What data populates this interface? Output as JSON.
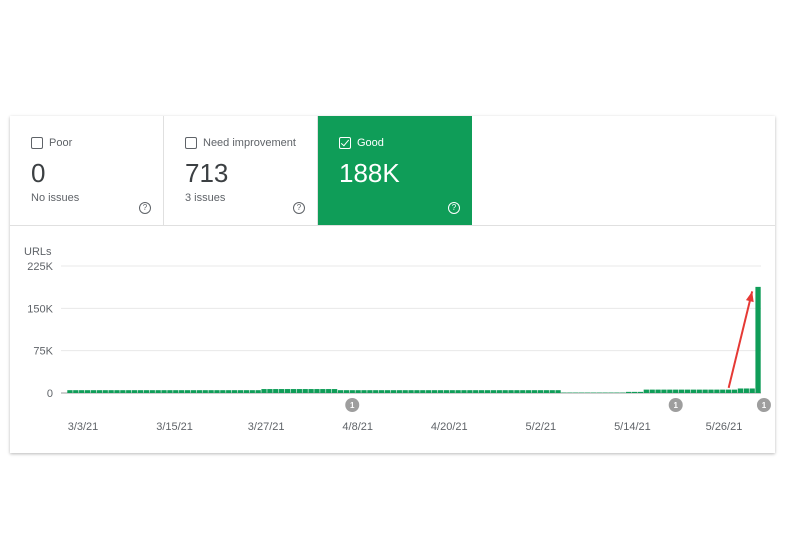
{
  "tiles": {
    "poor": {
      "label": "Poor",
      "value": "0",
      "sub": "No issues",
      "checked": false
    },
    "need_improvement": {
      "label": "Need improvement",
      "value": "713",
      "sub": "3 issues",
      "checked": false
    },
    "good": {
      "label": "Good",
      "value": "188K",
      "sub": "",
      "checked": true
    },
    "help_glyph": "?"
  },
  "colors": {
    "good": "#0f9d58",
    "arrow": "#e53935",
    "marker": "#9e9e9e"
  },
  "chart_data": {
    "type": "bar",
    "ylabel": "URLs",
    "ylim": [
      0,
      225000
    ],
    "yticks": [
      "225K",
      "150K",
      "75K",
      "0"
    ],
    "ytick_values": [
      225000,
      150000,
      75000,
      0
    ],
    "xticks": [
      "3/3/21",
      "3/15/21",
      "3/27/21",
      "4/8/21",
      "4/20/21",
      "5/2/21",
      "5/14/21",
      "5/26/21"
    ],
    "grid": true,
    "series": [
      {
        "color": "#0f9d58",
        "values": [
          5000,
          5000,
          5000,
          5000,
          5000,
          5000,
          5000,
          5000,
          5000,
          5000,
          5000,
          5000,
          5000,
          5000,
          5000,
          5000,
          5000,
          5000,
          5000,
          5000,
          5000,
          5000,
          5000,
          5000,
          5000,
          5000,
          5000,
          5000,
          5000,
          5000,
          5000,
          5000,
          5000,
          7000,
          7000,
          7000,
          7000,
          7000,
          7000,
          7000,
          7000,
          7000,
          7000,
          7000,
          7000,
          7000,
          5000,
          5000,
          5000,
          5000,
          5000,
          5000,
          5000,
          5000,
          5000,
          5000,
          5000,
          5000,
          5000,
          5000,
          5000,
          5000,
          5000,
          5000,
          5000,
          5000,
          5000,
          5000,
          5000,
          5000,
          5000,
          5000,
          5000,
          5000,
          5000,
          5000,
          5000,
          5000,
          5000,
          5000,
          5000,
          5000,
          5000,
          5000,
          800,
          800,
          800,
          800,
          800,
          800,
          800,
          800,
          800,
          800,
          800,
          2000,
          2000,
          2000,
          6000,
          6000,
          6000,
          6000,
          6000,
          6000,
          6000,
          6000,
          6000,
          6000,
          6000,
          6000,
          6000,
          6000,
          6000,
          6000,
          8000,
          8000,
          8000,
          188000
        ]
      }
    ],
    "annotations": [
      {
        "type": "marker",
        "text": "1",
        "x_index": 48
      },
      {
        "type": "marker",
        "text": "1",
        "x_index": 103
      },
      {
        "type": "marker",
        "text": "1",
        "x_index": 118
      },
      {
        "type": "arrow",
        "from_index": 112,
        "from_value": 9000,
        "to_value": 180000
      }
    ]
  }
}
